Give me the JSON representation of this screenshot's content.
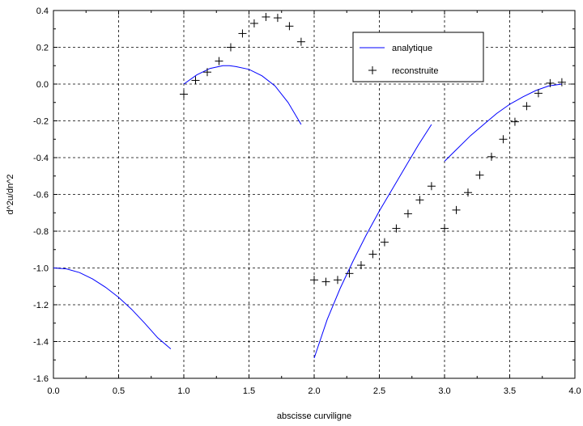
{
  "chart_data": {
    "type": "line",
    "title": "",
    "xlabel": "abscisse curviligne",
    "ylabel": "d^2u/dn^2",
    "xlim": [
      0.0,
      4.0
    ],
    "ylim": [
      -1.6,
      0.4
    ],
    "xticks": [
      "0.0",
      "0.5",
      "1.0",
      "1.5",
      "2.0",
      "2.5",
      "3.0",
      "3.5",
      "4.0"
    ],
    "yticks": [
      "0.4",
      "0.2",
      "0.0",
      "-0.2",
      "-0.4",
      "-0.6",
      "-0.8",
      "-1.0",
      "-1.2",
      "-1.4",
      "-1.6"
    ],
    "grid": true,
    "legend_position": "top-right",
    "colors": {
      "analytique": "#0000ff",
      "reconstruite": "#000000"
    },
    "series": [
      {
        "name": "analytique",
        "style": "line",
        "segments": [
          {
            "x": [
              0.0,
              0.1,
              0.2,
              0.3,
              0.4,
              0.5,
              0.6,
              0.7,
              0.8,
              0.9
            ],
            "y": [
              -1.0,
              -1.005,
              -1.025,
              -1.06,
              -1.105,
              -1.16,
              -1.225,
              -1.3,
              -1.38,
              -1.44
            ]
          },
          {
            "x": [
              1.0,
              1.1,
              1.2,
              1.3,
              1.35,
              1.4,
              1.5,
              1.6,
              1.7,
              1.8,
              1.9
            ],
            "y": [
              0.0,
              0.05,
              0.085,
              0.1,
              0.1,
              0.095,
              0.08,
              0.045,
              -0.01,
              -0.1,
              -0.22
            ]
          },
          {
            "x": [
              2.0,
              2.1,
              2.2,
              2.3,
              2.4,
              2.5,
              2.6,
              2.7,
              2.8,
              2.9
            ],
            "y": [
              -1.49,
              -1.28,
              -1.11,
              -0.96,
              -0.82,
              -0.69,
              -0.57,
              -0.45,
              -0.33,
              -0.22
            ]
          },
          {
            "x": [
              3.0,
              3.1,
              3.2,
              3.3,
              3.4,
              3.5,
              3.6,
              3.7,
              3.8,
              3.9
            ],
            "y": [
              -0.42,
              -0.35,
              -0.28,
              -0.22,
              -0.16,
              -0.11,
              -0.07,
              -0.035,
              -0.01,
              0.0
            ]
          }
        ]
      },
      {
        "name": "reconstruite",
        "style": "markers",
        "marker": "plus",
        "x": [
          1.0,
          1.09,
          1.18,
          1.27,
          1.36,
          1.45,
          1.54,
          1.63,
          1.72,
          1.81,
          1.9,
          2.0,
          2.09,
          2.18,
          2.27,
          2.36,
          2.45,
          2.54,
          2.63,
          2.72,
          2.81,
          2.9,
          3.0,
          3.09,
          3.18,
          3.27,
          3.36,
          3.45,
          3.54,
          3.63,
          3.72,
          3.81,
          3.9
        ],
        "y": [
          -0.055,
          0.02,
          0.065,
          0.125,
          0.2,
          0.275,
          0.33,
          0.365,
          0.36,
          0.315,
          0.23,
          -1.065,
          -1.075,
          -1.065,
          -1.03,
          -0.985,
          -0.925,
          -0.86,
          -0.785,
          -0.705,
          -0.63,
          -0.555,
          -0.785,
          -0.685,
          -0.59,
          -0.495,
          -0.395,
          -0.3,
          -0.205,
          -0.12,
          -0.05,
          0.005,
          0.01
        ]
      }
    ]
  }
}
